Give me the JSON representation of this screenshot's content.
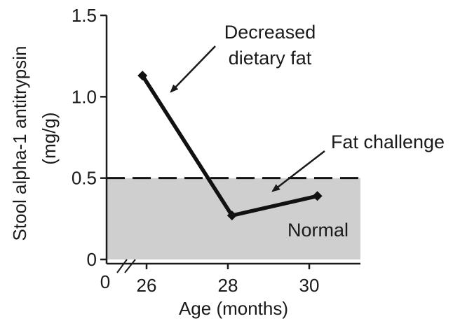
{
  "chart_data": {
    "type": "line",
    "title": "",
    "xlabel": "Age (months)",
    "ylabel": "Stool alpha-1 antitrypsin (mg/g)",
    "ylabel_lines": [
      "Stool alpha-1 antitrypsin",
      "(mg/g)"
    ],
    "xlim": [
      25,
      31.5
    ],
    "ylim": [
      0,
      1.5
    ],
    "x_ticks": [
      26,
      28,
      30
    ],
    "x_tick_labels": [
      "26",
      "28",
      "30"
    ],
    "x_origin_label": "0",
    "x_axis_break": true,
    "y_ticks": [
      0,
      0.5,
      1.0,
      1.5
    ],
    "y_tick_labels": [
      "0",
      "0.5",
      "1.0",
      "1.5"
    ],
    "grid": false,
    "series": [
      {
        "x": [
          25.9,
          28.1,
          30.2
        ],
        "y": [
          1.13,
          0.27,
          0.39
        ]
      }
    ],
    "reference_line": {
      "y": 0.5,
      "style": "dashed"
    },
    "normal_region": {
      "y": [
        0,
        0.5
      ],
      "label": "Normal",
      "color": "#cfcfcf"
    },
    "annotations": [
      {
        "lines": [
          "Decreased",
          "dietary fat"
        ],
        "points_to": {
          "x": 26.6,
          "y": 1.03
        }
      },
      {
        "lines": [
          "Fat challenge"
        ],
        "points_to": {
          "x": 29.1,
          "y": 0.42
        }
      }
    ],
    "colors": {
      "line": "#111111",
      "region": "#cfcfcf",
      "axis": "#1a1a1a"
    }
  }
}
